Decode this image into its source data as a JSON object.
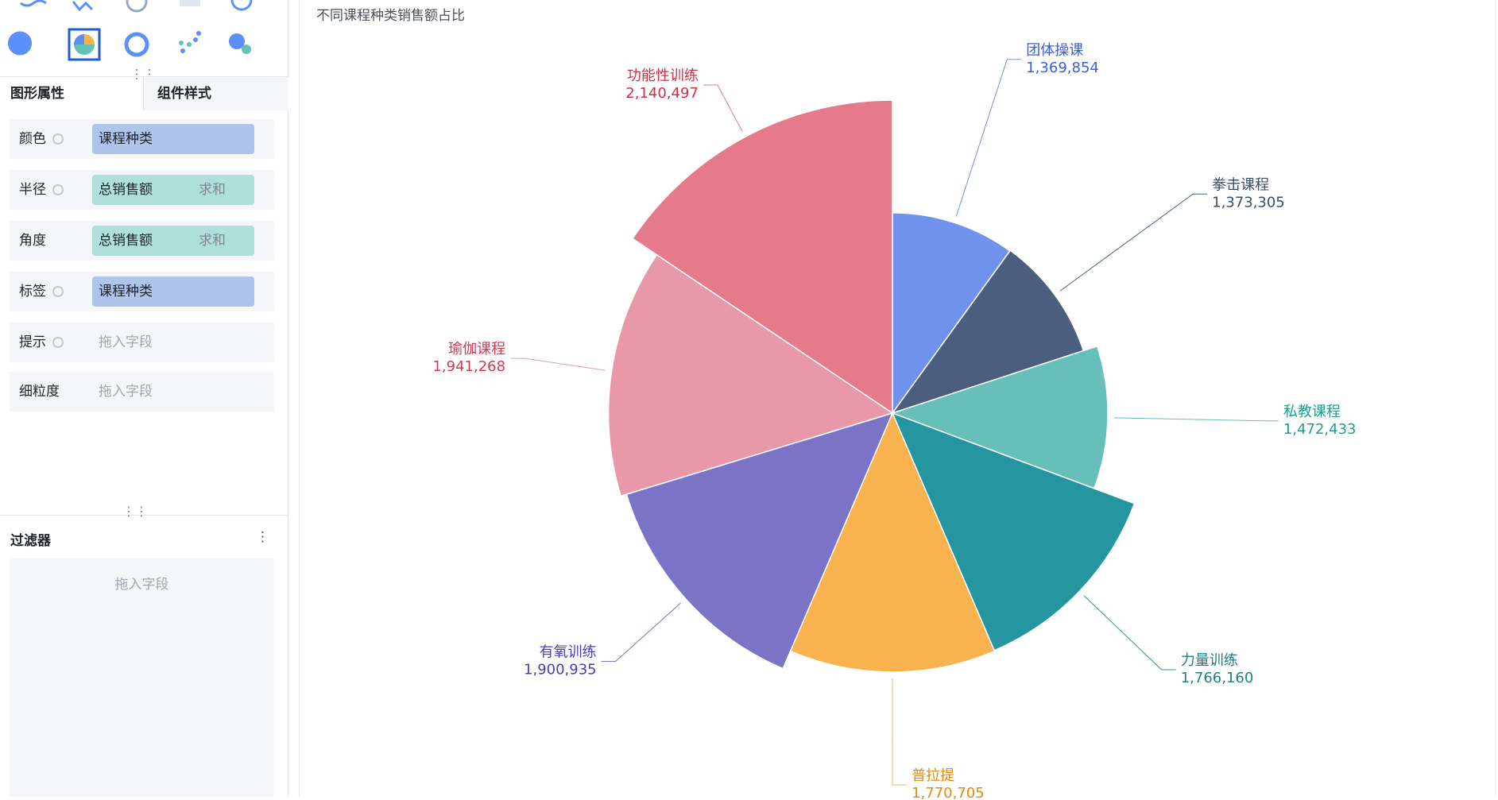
{
  "panel": {
    "tabs": [
      "图形属性",
      "组件样式"
    ],
    "fields": [
      {
        "label": "颜色",
        "value": "课程种类"
      },
      {
        "label": "半径",
        "value": "总销售额",
        "aggregate": "求和"
      },
      {
        "label": "角度",
        "value": "总销售额",
        "aggregate": "求和"
      },
      {
        "label": "标签",
        "value": "课程种类"
      },
      {
        "label": "提示",
        "placeholder": "拖入字段"
      },
      {
        "label": "细粒度",
        "placeholder": "拖入字段"
      }
    ]
  },
  "filter": {
    "title": "过滤器",
    "placeholder": "拖入字段"
  },
  "chart_data": {
    "type": "rose",
    "title": "不同课程种类销售额占比",
    "categories": [
      "团体操课",
      "拳击课程",
      "私教课程",
      "力量训练",
      "普拉提",
      "有氧训练",
      "瑜伽课程",
      "功能性训练"
    ],
    "values": [
      1369854,
      1373305,
      1472433,
      1766160,
      1770705,
      1900935,
      1941268,
      2140497
    ],
    "value_labels": [
      "1,369,854",
      "1,373,305",
      "1,472,433",
      "1,766,160",
      "1,770,705",
      "1,900,935",
      "1,941,268",
      "2,140,497"
    ],
    "colors": [
      "#7092ed",
      "#4b5e80",
      "#66bfb8",
      "#2596a0",
      "#f8b34f",
      "#7b73c6",
      "#e898a8",
      "#e57a8a"
    ],
    "label_colors": [
      "#3a5fd6",
      "#3e4d68",
      "#1e9e8e",
      "#1b7f88",
      "#e08a10",
      "#4a3eb0",
      "#d33a55",
      "#cc3048"
    ]
  }
}
